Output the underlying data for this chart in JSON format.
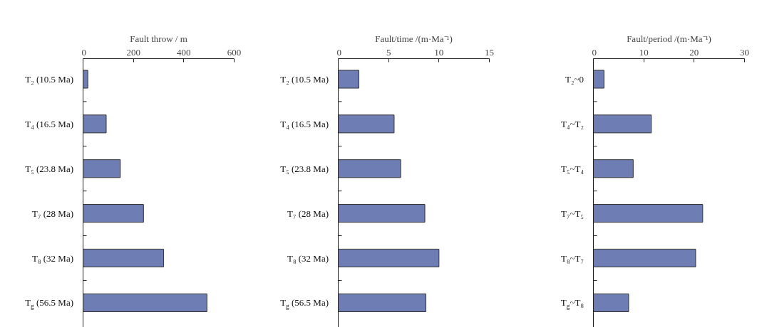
{
  "chart_data": [
    {
      "type": "bar",
      "orientation": "horizontal",
      "xlabel": "Fault throw / m",
      "categories": [
        "T₂ (10.5 Ma)",
        "T₄ (16.5 Ma)",
        "T₅ (23.8 Ma)",
        "T₇ (28 Ma)",
        "T₈ (32 Ma)",
        "T$_{g}$ (56.5 Ma)"
      ],
      "values": [
        19,
        92,
        148,
        240,
        320,
        492
      ],
      "color": "#6f7db5",
      "xlim": [
        0,
        600
      ],
      "xticks": [
        0,
        200,
        400,
        600
      ],
      "grid": false
    },
    {
      "type": "bar",
      "orientation": "horizontal",
      "xlabel": "Fault/time /(m·Ma⁻¹)",
      "categories": [
        "T₂ (10.5 Ma)",
        "T₄ (16.5 Ma)",
        "T₅ (23.8 Ma)",
        "T₇ (28 Ma)",
        "T₈ (32 Ma)",
        "T$_{g}$ (56.5 Ma)"
      ],
      "values": [
        2.05,
        5.55,
        6.2,
        8.6,
        10.0,
        8.7
      ],
      "color": "#6f7db5",
      "xlim": [
        0,
        15
      ],
      "xticks": [
        0,
        5,
        10,
        15
      ],
      "grid": false
    },
    {
      "type": "bar",
      "orientation": "horizontal",
      "xlabel": "Fault/period /(m·Ma⁻¹)",
      "categories": [
        "T₂~0",
        "T₄~T₂",
        "T₅~T₄",
        "T₇~T₅",
        "T₈~T₇",
        "T$_{g}$~T₈"
      ],
      "values": [
        2.1,
        11.5,
        7.9,
        21.7,
        20.3,
        7.0
      ],
      "color": "#6f7db5",
      "xlim": [
        0,
        30
      ],
      "xticks": [
        0,
        10,
        20,
        30
      ],
      "grid": false
    }
  ]
}
